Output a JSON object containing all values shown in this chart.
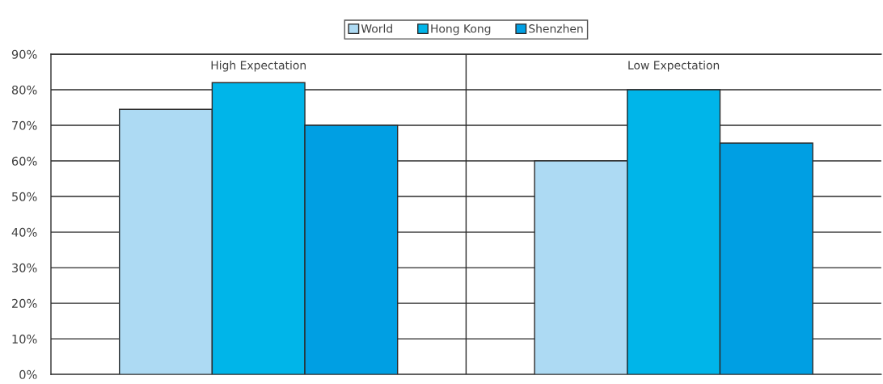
{
  "chart_data": {
    "type": "bar",
    "categories": [
      "High Expectation",
      "Low Expectation"
    ],
    "series": [
      {
        "name": "World",
        "color": "#addaf3",
        "values": [
          74.5,
          60
        ]
      },
      {
        "name": "Hong Kong",
        "color": "#00b5e9",
        "values": [
          82,
          80
        ]
      },
      {
        "name": "Shenzhen",
        "color": "#009fe3",
        "values": [
          70,
          65
        ]
      }
    ],
    "ylim": [
      0,
      90
    ],
    "yticks": [
      {
        "value": 0,
        "label": "0%"
      },
      {
        "value": 10,
        "label": "10%"
      },
      {
        "value": 20,
        "label": "20%"
      },
      {
        "value": 30,
        "label": "30%"
      },
      {
        "value": 40,
        "label": "40%"
      },
      {
        "value": 50,
        "label": "50%"
      },
      {
        "value": 60,
        "label": "60%"
      },
      {
        "value": 70,
        "label": "70%"
      },
      {
        "value": 80,
        "label": "80%"
      },
      {
        "value": 90,
        "label": "90%"
      }
    ],
    "grid": true,
    "legend": "top"
  }
}
